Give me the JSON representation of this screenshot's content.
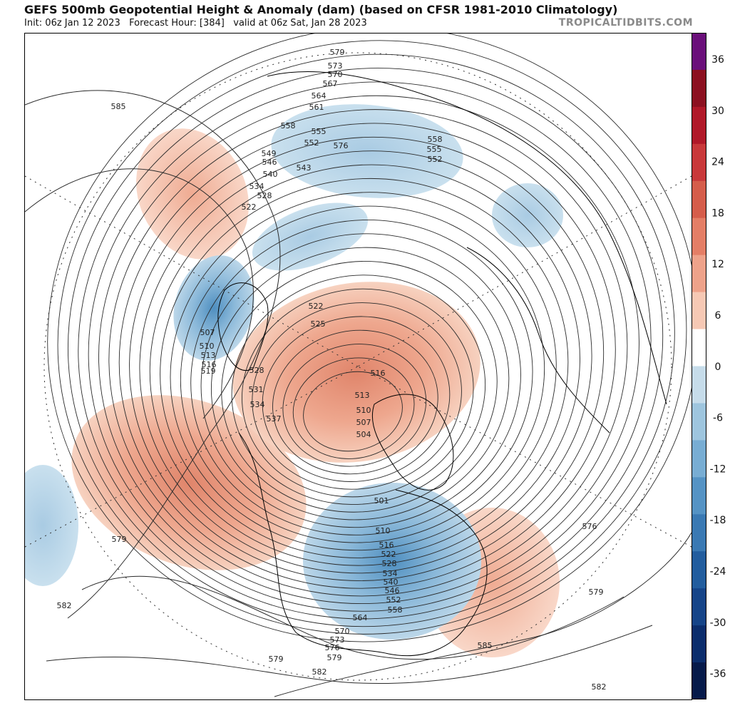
{
  "header": {
    "title": "GEFS 500mb Geopotential Height & Anomaly (dam) (based on CFSR 1981-2010 Climatology)",
    "init": "Init: 06z Jan 12 2023",
    "forecast_hour": "Forecast Hour: [384]",
    "valid": "valid at 06z Sat, Jan 28 2023",
    "site": "TROPICALTIDBITS.COM"
  },
  "map": {
    "contour_labels": [
      "585",
      "579",
      "582",
      "582",
      "579",
      "585",
      "582",
      "576",
      "579",
      "579",
      "576",
      "573",
      "570",
      "567",
      "564",
      "561",
      "558",
      "555",
      "552",
      "549",
      "546",
      "543",
      "540",
      "534",
      "528",
      "522",
      "507",
      "510",
      "513",
      "516",
      "519",
      "522",
      "525",
      "528",
      "531",
      "534",
      "537",
      "516",
      "513",
      "510",
      "507",
      "504",
      "501",
      "510",
      "516",
      "522",
      "528",
      "534",
      "540",
      "546",
      "552",
      "558",
      "564",
      "570",
      "573",
      "576",
      "579",
      "558",
      "555",
      "552"
    ]
  },
  "colorbar": {
    "labels": [
      "36",
      "30",
      "24",
      "18",
      "12",
      "6",
      "0",
      "-6",
      "-12",
      "-18",
      "-24",
      "-30",
      "-36"
    ],
    "colors": [
      "#6a0f7a",
      "#8c1020",
      "#b01828",
      "#c8383a",
      "#d55d4b",
      "#e47e66",
      "#eea28a",
      "#f6c8b4",
      "#ffffff",
      "#c6dcea",
      "#9ec5de",
      "#78add3",
      "#5593c4",
      "#3a79b3",
      "#225d9e",
      "#154488",
      "#0b2d6c",
      "#061a4a"
    ]
  }
}
